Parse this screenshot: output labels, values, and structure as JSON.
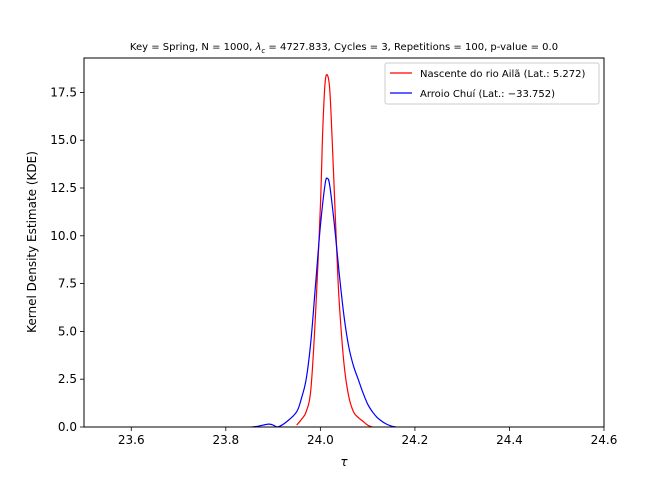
{
  "chart_data": {
    "type": "line",
    "title": "Key = Spring, N = 1000, λ_c = 4727.833, Cycles = 3, Repetitions = 100, p-value = 0.0",
    "title_parts": {
      "before": "Key = Spring, N = 1000, ",
      "lambda_symbol": "λ",
      "lambda_sub": "c",
      "after": " = 4727.833, Cycles = 3, Repetitions = 100, p-value = 0.0"
    },
    "xlabel": "τ",
    "ylabel": "Kernel Density Estimate (KDE)",
    "xlim": [
      23.5,
      24.6
    ],
    "ylim": [
      0,
      19.3
    ],
    "xticks": [
      23.6,
      23.8,
      24.0,
      24.2,
      24.4,
      24.6
    ],
    "xtick_labels": [
      "23.6",
      "23.8",
      "24.0",
      "24.2",
      "24.4",
      "24.6"
    ],
    "yticks": [
      0,
      2.5,
      5,
      7.5,
      10,
      12.5,
      15,
      17.5
    ],
    "ytick_labels": [
      "0.0",
      "2.5",
      "5.0",
      "7.5",
      "10.0",
      "12.5",
      "15.0",
      "17.5"
    ],
    "grid": false,
    "legend_position": "top-right",
    "series": [
      {
        "name": "Nascente do rio Ailã (Lat.: 5.272)",
        "color": "#ff0000",
        "x": [
          23.95,
          23.96,
          23.97,
          23.98,
          23.99,
          24.0,
          24.005,
          24.01,
          24.015,
          24.02,
          24.025,
          24.03,
          24.035,
          24.04,
          24.05,
          24.06,
          24.07,
          24.08,
          24.09,
          24.1,
          24.11
        ],
        "y": [
          0.1,
          0.4,
          0.8,
          2.0,
          6.0,
          11.5,
          15.5,
          18.0,
          18.4,
          17.6,
          15.0,
          12.0,
          9.0,
          6.5,
          3.3,
          1.6,
          0.8,
          0.5,
          0.3,
          0.1,
          0.0
        ]
      },
      {
        "name": "Arroio Chuí (Lat.: −33.752)",
        "color": "#0000ff",
        "x": [
          23.855,
          23.87,
          23.89,
          23.9,
          23.91,
          23.93,
          23.95,
          23.96,
          23.97,
          23.98,
          23.99,
          24.0,
          24.01,
          24.015,
          24.02,
          24.03,
          24.04,
          24.05,
          24.06,
          24.07,
          24.08,
          24.09,
          24.1,
          24.11,
          24.12,
          24.13,
          24.14,
          24.15,
          24.16
        ],
        "y": [
          0.0,
          0.05,
          0.15,
          0.1,
          0.0,
          0.3,
          0.8,
          1.5,
          2.5,
          4.5,
          7.5,
          10.5,
          12.7,
          13.0,
          12.6,
          10.5,
          8.0,
          5.8,
          4.2,
          3.2,
          2.5,
          1.8,
          1.2,
          0.8,
          0.5,
          0.3,
          0.15,
          0.05,
          0.0
        ]
      }
    ]
  }
}
